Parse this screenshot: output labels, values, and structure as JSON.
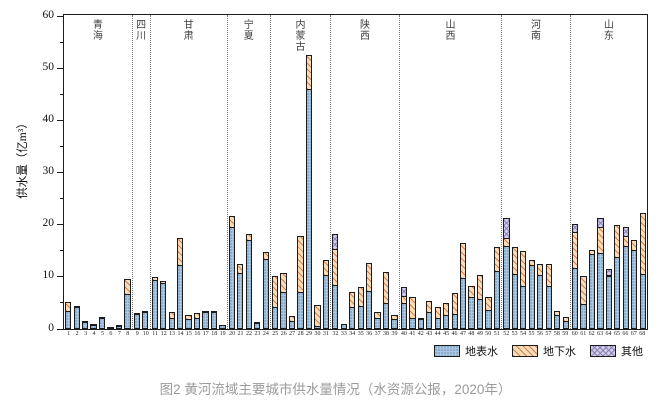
{
  "caption": "图2 黄河流域主要城市供水量情况（水资源公报，2020年）",
  "y_axis": {
    "label": "供水量（亿m³）",
    "min": 0,
    "max": 60,
    "major_step": 10,
    "minor_step": 5,
    "ticks": [
      0,
      10,
      20,
      30,
      40,
      50,
      60
    ]
  },
  "x_axis": {
    "labels_from": 1,
    "labels_to": 68
  },
  "legend": {
    "items": [
      "地表水",
      "地下水",
      "其他"
    ]
  },
  "colors": {
    "surface_base": "#a9c5df",
    "surface_dot": "#46749f",
    "ground_base": "#f9dcba",
    "ground_hatch": "#d2824a",
    "other_base": "#d2cde7",
    "other_hatch": "#8b85ba",
    "axis": "#1c1c1c",
    "separator": "#7d7d7d",
    "caption": "#9b9b9b"
  },
  "chart_data": {
    "type": "bar",
    "stacked": true,
    "grid": false,
    "legend_position": "bottom-right",
    "title": "图2 黄河流域主要城市供水量情况（水资源公报，2020年）",
    "ylabel": "供水量（亿m³）",
    "ylim": [
      0,
      60
    ],
    "series_keys": [
      "surface",
      "ground",
      "other"
    ],
    "series_names": [
      "地表水",
      "地下水",
      "其他"
    ],
    "provinces": [
      {
        "name": "青海",
        "bars": [
          [
            1,
            3.4,
            1.8,
            0
          ],
          [
            2,
            4.2,
            0.2,
            0
          ],
          [
            3,
            1.3,
            0.1,
            0
          ],
          [
            4,
            0.7,
            0.1,
            0
          ],
          [
            5,
            2.2,
            0.1,
            0
          ],
          [
            6,
            0.3,
            0,
            0
          ],
          [
            7,
            0.5,
            0.1,
            0
          ],
          [
            8,
            6.8,
            2.8,
            0
          ]
        ]
      },
      {
        "name": "四川",
        "bars": [
          [
            9,
            2.9,
            0.1,
            0
          ],
          [
            10,
            3.2,
            0.2,
            0
          ]
        ]
      },
      {
        "name": "甘肃",
        "bars": [
          [
            11,
            9.4,
            0.5,
            0
          ],
          [
            12,
            8.8,
            0.4,
            0
          ],
          [
            13,
            2.2,
            1.0,
            0
          ],
          [
            14,
            12.2,
            5.2,
            0
          ],
          [
            15,
            1.9,
            0.8,
            0
          ],
          [
            16,
            2.1,
            0.9,
            0
          ],
          [
            17,
            3.3,
            0.2,
            0
          ],
          [
            18,
            3.2,
            0.1,
            0
          ],
          [
            19,
            0.8,
            0,
            0
          ]
        ]
      },
      {
        "name": "宁夏",
        "bars": [
          [
            20,
            19.6,
            2.1,
            0
          ],
          [
            21,
            10.8,
            1.6,
            0
          ],
          [
            22,
            17.0,
            1.3,
            0
          ],
          [
            23,
            1.2,
            0.1,
            0
          ],
          [
            24,
            13.4,
            1.3,
            0
          ]
        ]
      },
      {
        "name": "内蒙古",
        "bars": [
          [
            25,
            4.2,
            6.0,
            0
          ],
          [
            26,
            7.0,
            3.7,
            0
          ],
          [
            27,
            1.6,
            0.9,
            0
          ],
          [
            28,
            7.0,
            10.9,
            0
          ],
          [
            29,
            46.0,
            6.5,
            0
          ],
          [
            30,
            0.5,
            4.1,
            0
          ],
          [
            31,
            10.4,
            2.9,
            0
          ]
        ]
      },
      {
        "name": "陕西",
        "bars": [
          [
            32,
            8.5,
            6.9,
            2.9
          ],
          [
            33,
            1.0,
            0,
            0
          ],
          [
            34,
            4.2,
            2.9,
            0
          ],
          [
            35,
            4.5,
            3.5,
            0
          ],
          [
            36,
            7.2,
            5.4,
            0
          ],
          [
            37,
            2.2,
            1.0,
            0
          ],
          [
            38,
            4.9,
            6.0,
            0
          ],
          [
            39,
            1.9,
            0.7,
            0
          ]
        ]
      },
      {
        "name": "山西",
        "bars": [
          [
            40,
            4.9,
            1.5,
            1.7
          ],
          [
            41,
            2.2,
            4.0,
            0
          ],
          [
            42,
            1.9,
            0.3,
            0
          ],
          [
            43,
            3.2,
            2.2,
            0
          ],
          [
            44,
            2.2,
            2.1,
            0
          ],
          [
            45,
            2.6,
            2.3,
            0
          ],
          [
            46,
            2.9,
            4.0,
            0
          ],
          [
            47,
            9.8,
            6.7,
            0
          ],
          [
            48,
            6.1,
            2.2,
            0
          ],
          [
            49,
            5.8,
            4.6,
            0
          ],
          [
            50,
            3.7,
            2.4,
            0
          ],
          [
            51,
            11.2,
            4.5,
            0
          ]
        ]
      },
      {
        "name": "河南",
        "bars": [
          [
            52,
            16.0,
            1.4,
            3.8
          ],
          [
            53,
            10.5,
            5.3,
            0
          ],
          [
            54,
            8.3,
            6.6,
            0
          ],
          [
            55,
            12.2,
            1.1,
            0
          ],
          [
            56,
            10.3,
            2.2,
            0
          ],
          [
            57,
            8.3,
            4.2,
            0
          ],
          [
            58,
            2.6,
            0.9,
            0
          ],
          [
            59,
            1.5,
            0.8,
            0
          ]
        ]
      },
      {
        "name": "山东",
        "bars": [
          [
            60,
            11.7,
            6.9,
            1.6
          ],
          [
            61,
            4.8,
            5.3,
            0
          ],
          [
            62,
            14.3,
            0.9,
            0
          ],
          [
            63,
            14.5,
            5.0,
            1.8
          ],
          [
            64,
            10.2,
            0.2,
            1.1
          ],
          [
            65,
            13.8,
            6.1,
            0
          ],
          [
            66,
            16.0,
            1.9,
            1.7
          ],
          [
            67,
            15.1,
            1.9,
            0
          ],
          [
            68,
            10.6,
            11.6,
            0
          ]
        ]
      }
    ]
  }
}
